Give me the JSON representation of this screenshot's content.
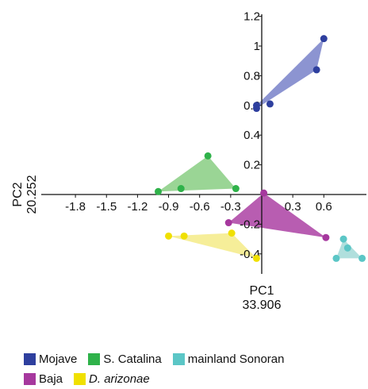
{
  "chart_data": {
    "type": "scatter",
    "xlabel": "PC1",
    "xlabel_value": "33.906",
    "ylabel": "PC2",
    "ylabel_value": "20.252",
    "x_ticks": [
      "-1.8",
      "-1.5",
      "-1.2",
      "-0.9",
      "-0.6",
      "-0.3",
      "0.3",
      "0.6"
    ],
    "x_tick_values": [
      -1.8,
      -1.5,
      -1.2,
      -0.9,
      -0.6,
      -0.3,
      0.3,
      0.6
    ],
    "y_ticks": [
      "1.2",
      "1",
      "0.8",
      "0.6",
      "0.4",
      "0.2",
      "-0.2",
      "-0.4"
    ],
    "y_tick_values": [
      1.2,
      1.0,
      0.8,
      0.6,
      0.4,
      0.2,
      -0.2,
      -0.4
    ],
    "xlim": [
      -2.1,
      1.05
    ],
    "ylim": [
      -0.5,
      1.2
    ],
    "grid": false,
    "legend_position": "bottom",
    "series": [
      {
        "name": "Mojave",
        "color": "#2e3f9e",
        "fill": "#7f88cc",
        "points": [
          [
            -0.05,
            0.58
          ],
          [
            -0.05,
            0.6
          ],
          [
            0.08,
            0.61
          ],
          [
            0.53,
            0.84
          ],
          [
            0.6,
            1.05
          ]
        ],
        "hull": [
          [
            -0.05,
            0.58
          ],
          [
            0.53,
            0.84
          ],
          [
            0.6,
            1.05
          ],
          [
            -0.05,
            0.6
          ]
        ]
      },
      {
        "name": "S. Catalina",
        "color": "#2fb24a",
        "fill": "#8fd089",
        "points": [
          [
            -1.0,
            0.02
          ],
          [
            -0.78,
            0.04
          ],
          [
            -0.52,
            0.26
          ],
          [
            -0.25,
            0.04
          ]
        ],
        "hull": [
          [
            -1.0,
            0.02
          ],
          [
            -0.52,
            0.26
          ],
          [
            -0.25,
            0.04
          ]
        ]
      },
      {
        "name": "mainland Sonoran",
        "color": "#5bc6c6",
        "fill": "#a7dcd9",
        "points": [
          [
            0.79,
            -0.3
          ],
          [
            0.83,
            -0.36
          ],
          [
            0.72,
            -0.43
          ],
          [
            0.97,
            -0.43
          ]
        ],
        "hull": [
          [
            0.79,
            -0.3
          ],
          [
            0.97,
            -0.43
          ],
          [
            0.72,
            -0.43
          ]
        ]
      },
      {
        "name": "Baja",
        "color": "#a6389e",
        "fill": "#b04ba9",
        "points": [
          [
            0.02,
            0.01
          ],
          [
            -0.32,
            -0.19
          ],
          [
            0.62,
            -0.29
          ]
        ],
        "hull": [
          [
            0.02,
            0.01
          ],
          [
            0.62,
            -0.29
          ],
          [
            -0.32,
            -0.19
          ]
        ]
      },
      {
        "name": "D. arizonae",
        "color": "#f0e000",
        "fill": "#f5ec8e",
        "points": [
          [
            -0.9,
            -0.28
          ],
          [
            -0.75,
            -0.28
          ],
          [
            -0.29,
            -0.26
          ],
          [
            -0.05,
            -0.43
          ]
        ],
        "hull": [
          [
            -0.9,
            -0.28
          ],
          [
            -0.29,
            -0.26
          ],
          [
            -0.05,
            -0.43
          ]
        ]
      }
    ]
  },
  "legend": {
    "rows": [
      [
        {
          "label": "Mojave",
          "color": "#2e3f9e",
          "italic": false
        },
        {
          "label": "S. Catalina",
          "color": "#2fb24a",
          "italic": false
        },
        {
          "label": "mainland Sonoran",
          "color": "#5bc6c6",
          "italic": false
        }
      ],
      [
        {
          "label": "Baja",
          "color": "#a6389e",
          "italic": false
        },
        {
          "label": "D. arizonae",
          "color": "#f0e000",
          "italic": true
        }
      ]
    ]
  }
}
